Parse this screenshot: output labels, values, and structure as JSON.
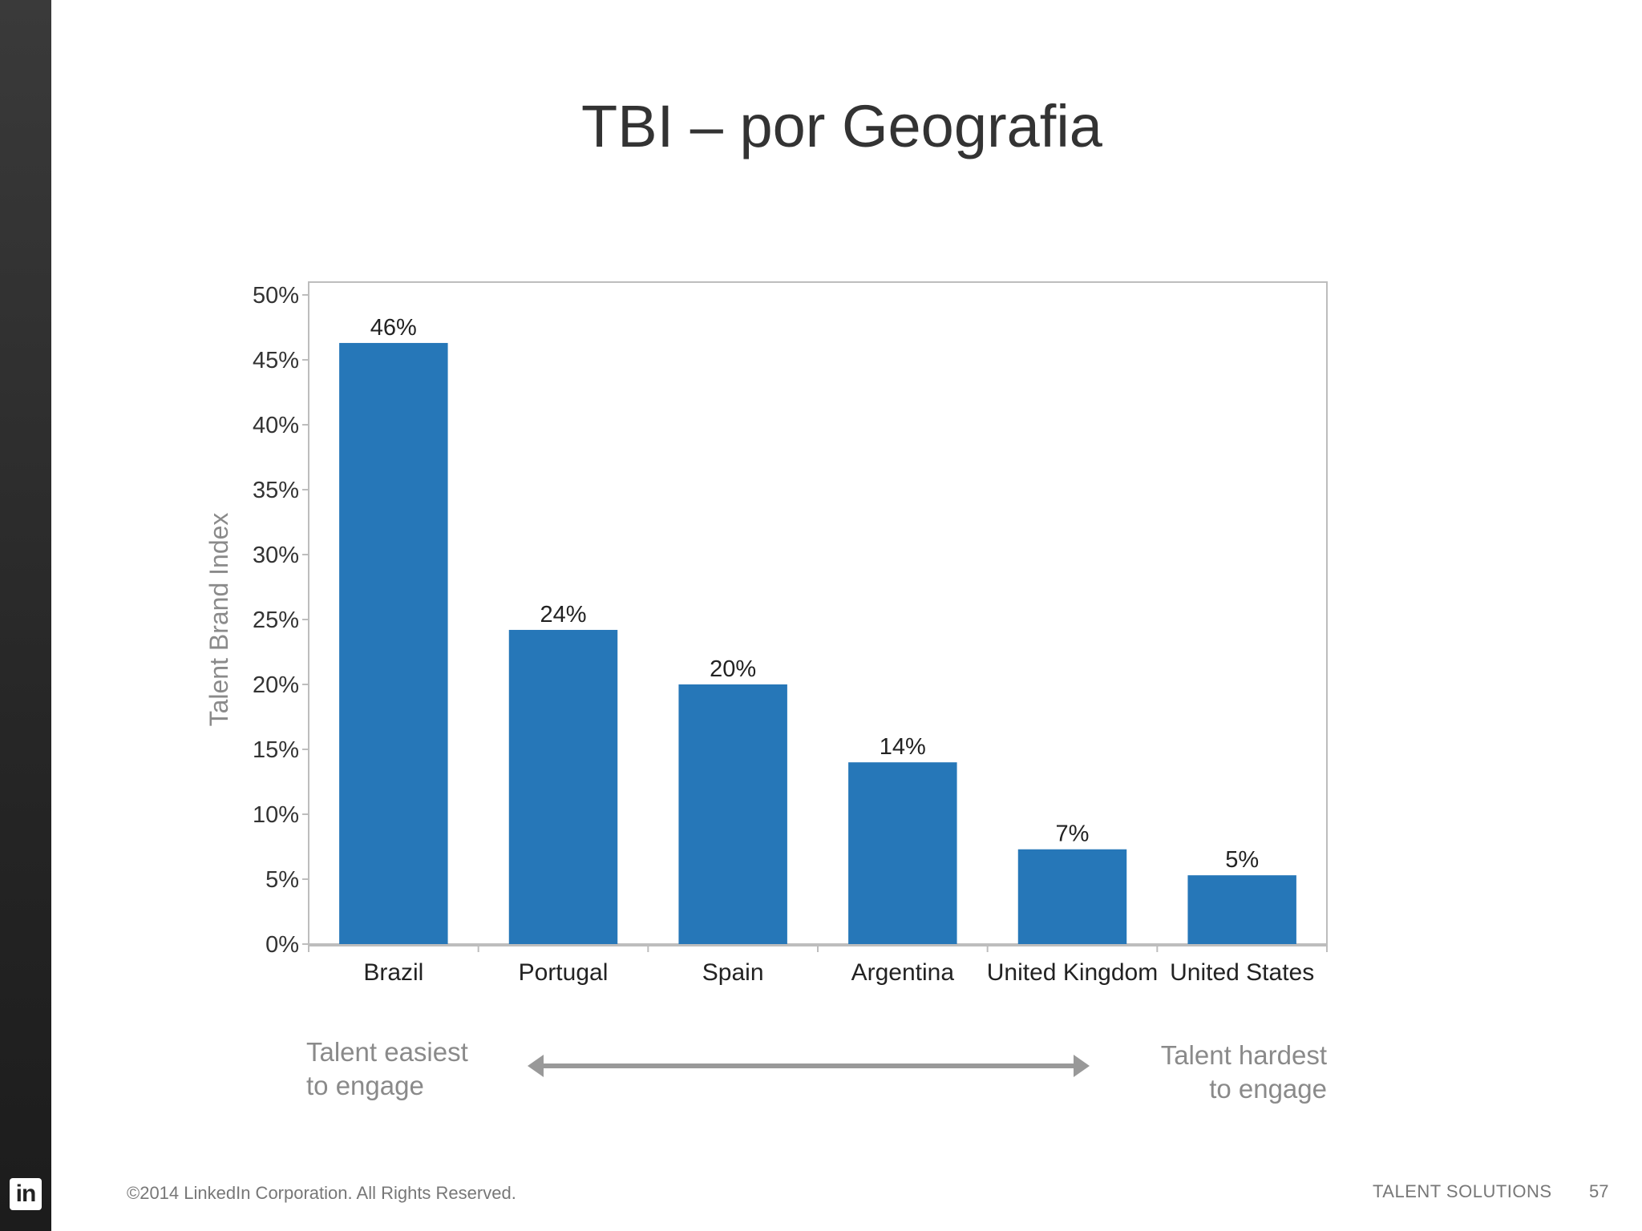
{
  "slide": {
    "title": "TBI – por Geografia",
    "easy_label_line1": "Talent easiest",
    "easy_label_line2": "to engage",
    "hard_label_line1": "Talent hardest",
    "hard_label_line2": "to engage",
    "logo_text": "in",
    "footer_copyright": "©2014 LinkedIn Corporation. All Rights Reserved.",
    "footer_brand": "TALENT SOLUTIONS",
    "page_number": "57",
    "bar_color": "#2677b8",
    "arrow_color": "#999999"
  },
  "chart_data": {
    "type": "bar",
    "title": "",
    "xlabel": "",
    "ylabel": "Talent Brand Index",
    "categories": [
      "Brazil",
      "Portugal",
      "Spain",
      "Argentina",
      "United Kingdom",
      "United States"
    ],
    "values": [
      46.3,
      24.2,
      20.0,
      14.0,
      7.3,
      5.3
    ],
    "data_labels": [
      "46%",
      "24%",
      "20%",
      "14%",
      "7%",
      "5%"
    ],
    "ylim": [
      0,
      50
    ],
    "yticks": [
      0,
      5,
      10,
      15,
      20,
      25,
      30,
      35,
      40,
      45,
      50
    ],
    "ytick_labels": [
      "0%",
      "5%",
      "10%",
      "15%",
      "20%",
      "25%",
      "30%",
      "35%",
      "40%",
      "45%",
      "50%"
    ],
    "grid": false,
    "legend": "none"
  }
}
